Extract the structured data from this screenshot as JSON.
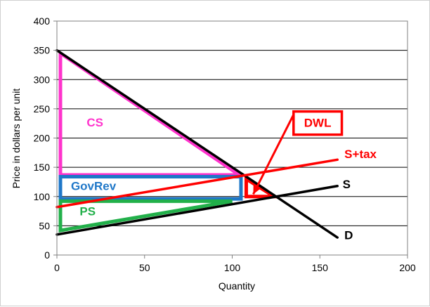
{
  "chart_data": {
    "type": "line",
    "xlabel": "Quantity",
    "ylabel": "Price in dollars per unit",
    "xlim": [
      0,
      200
    ],
    "ylim": [
      0,
      400
    ],
    "x_ticks": [
      0,
      50,
      100,
      150,
      200
    ],
    "y_ticks": [
      0,
      50,
      100,
      150,
      200,
      250,
      300,
      350,
      400
    ],
    "grid": "horizontal",
    "series": [
      {
        "name": "D",
        "color": "#000000",
        "points": [
          [
            0,
            350
          ],
          [
            160,
            30
          ]
        ]
      },
      {
        "name": "S",
        "color": "#000000",
        "points": [
          [
            0,
            35
          ],
          [
            160,
            118
          ]
        ]
      },
      {
        "name": "S+tax",
        "color": "#ff0000",
        "points": [
          [
            0,
            82
          ],
          [
            160,
            163
          ]
        ]
      }
    ],
    "regions": [
      {
        "name": "CS",
        "color": "#ff33cc",
        "points": [
          [
            2,
            345
          ],
          [
            2,
            137
          ],
          [
            104,
            137
          ]
        ]
      },
      {
        "name": "GovRev",
        "color": "#1f77c8",
        "points": [
          [
            2,
            134
          ],
          [
            105,
            134
          ],
          [
            105,
            96
          ],
          [
            2,
            96
          ]
        ]
      },
      {
        "name": "PS",
        "color": "#22b04a",
        "points": [
          [
            2,
            92
          ],
          [
            100,
            92
          ],
          [
            2,
            42
          ]
        ]
      },
      {
        "name": "DWL",
        "color": "#ff0000",
        "points": [
          [
            108,
            130
          ],
          [
            108,
            100
          ],
          [
            124,
            100
          ]
        ]
      }
    ],
    "annotations": [
      {
        "text": "CS",
        "color": "#ff33cc",
        "at": [
          17,
          220
        ]
      },
      {
        "text": "GovRev",
        "color": "#1f77c8",
        "at": [
          8,
          111
        ]
      },
      {
        "text": "PS",
        "color": "#22b04a",
        "at": [
          13,
          68
        ]
      },
      {
        "text": "S",
        "color": "#000000",
        "at": [
          163,
          114
        ]
      },
      {
        "text": "D",
        "color": "#000000",
        "at": [
          164,
          27
        ]
      },
      {
        "text": "S+tax",
        "color": "#ff0000",
        "at": [
          164,
          166
        ]
      },
      {
        "text": "DWL",
        "color": "#ff0000",
        "at": [
          141,
          219
        ],
        "boxed": true
      }
    ],
    "arrow": {
      "color": "#ff0000",
      "from": [
        135,
        240
      ],
      "to": [
        112,
        104
      ]
    }
  }
}
